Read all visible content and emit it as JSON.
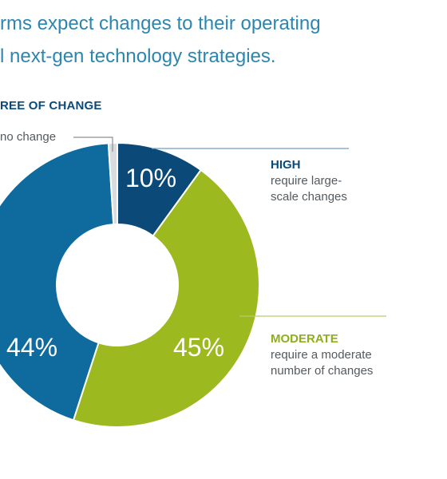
{
  "header": {
    "line1": "rms expect changes to their operating",
    "line2": "l next-gen technology strategies."
  },
  "chart_data": {
    "type": "pie",
    "heading": "REE OF CHANGE",
    "slices": [
      {
        "key": "high",
        "value": 10,
        "value_label": "10%",
        "color": "#0b4a78",
        "title": "HIGH",
        "desc": "require large-scale changes"
      },
      {
        "key": "moderate",
        "value": 45,
        "value_label": "45%",
        "color": "#9cb91f",
        "title": "MODERATE",
        "desc": "require a moderate number of changes"
      },
      {
        "key": "low",
        "value": 44,
        "value_label": "44%",
        "color": "#0f6a9e",
        "title": "",
        "desc": ""
      },
      {
        "key": "none",
        "value": 1,
        "value_label": "",
        "color": "#d9dcdf",
        "title": "",
        "desc": "no change"
      }
    ]
  }
}
